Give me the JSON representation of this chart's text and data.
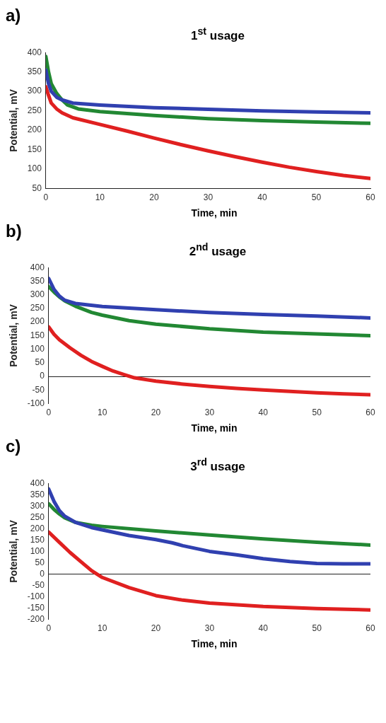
{
  "chart_data": [
    {
      "type": "line",
      "annotations": [
        "a)"
      ],
      "title": "1$^{st}$ usage",
      "xlabel": "Time, min",
      "ylabel": "Potential, mV",
      "xlim": [
        0,
        60
      ],
      "xticks": [
        0,
        10,
        20,
        30,
        40,
        50,
        60
      ],
      "ylim": [
        50,
        400
      ],
      "yticks": [
        50,
        100,
        150,
        200,
        250,
        300,
        350,
        400
      ],
      "marker": "none",
      "series": [
        {
          "color": "#3040b0",
          "x": [
            0,
            0.5,
            1,
            2,
            3,
            5,
            10,
            20,
            30,
            40,
            50,
            60
          ],
          "values": [
            355,
            320,
            300,
            285,
            278,
            270,
            265,
            258,
            254,
            250,
            247,
            245
          ]
        },
        {
          "color": "#228833",
          "x": [
            0,
            0.5,
            1,
            2,
            3,
            4,
            6,
            10,
            20,
            30,
            40,
            50,
            60
          ],
          "values": [
            390,
            350,
            320,
            295,
            278,
            265,
            255,
            248,
            238,
            230,
            225,
            221,
            218
          ]
        },
        {
          "color": "#e02020",
          "x": [
            0,
            0.5,
            1,
            2,
            3,
            5,
            10,
            15,
            20,
            25,
            30,
            35,
            40,
            45,
            50,
            55,
            60
          ],
          "values": [
            312,
            290,
            270,
            255,
            245,
            232,
            215,
            198,
            180,
            163,
            147,
            132,
            118,
            105,
            94,
            84,
            76
          ]
        }
      ]
    },
    {
      "type": "line",
      "annotations": [
        "b)"
      ],
      "title": "2$^{nd}$ usage",
      "xlabel": "Time, min",
      "ylabel": "Potential, mV",
      "xlim": [
        0,
        60
      ],
      "xticks": [
        0,
        10,
        20,
        30,
        40,
        50,
        60
      ],
      "ylim": [
        -100,
        400
      ],
      "yticks": [
        -100,
        -50,
        0,
        50,
        100,
        150,
        200,
        250,
        300,
        350,
        400
      ],
      "marker": "none",
      "series": [
        {
          "color": "#3040b0",
          "x": [
            0,
            1,
            2,
            3,
            5,
            10,
            20,
            30,
            40,
            50,
            60
          ],
          "values": [
            360,
            320,
            295,
            280,
            268,
            257,
            245,
            235,
            228,
            222,
            215
          ]
        },
        {
          "color": "#228833",
          "x": [
            0,
            1,
            2,
            3,
            5,
            8,
            10,
            15,
            20,
            30,
            40,
            50,
            60
          ],
          "values": [
            330,
            310,
            292,
            278,
            258,
            235,
            225,
            205,
            192,
            175,
            163,
            156,
            150
          ]
        },
        {
          "color": "#e02020",
          "x": [
            0,
            1,
            2,
            4,
            6,
            8,
            10,
            12,
            14,
            16,
            20,
            25,
            30,
            35,
            40,
            45,
            50,
            55,
            60
          ],
          "values": [
            182,
            155,
            135,
            105,
            78,
            55,
            37,
            20,
            7,
            -5,
            -17,
            -28,
            -37,
            -44,
            -50,
            -55,
            -60,
            -64,
            -67
          ]
        }
      ]
    },
    {
      "type": "line",
      "annotations": [
        "c)"
      ],
      "title": "3$^{rd}$ usage",
      "xlabel": "Time, min",
      "ylabel": "Potential, mV",
      "xlim": [
        0,
        60
      ],
      "xticks": [
        0,
        10,
        20,
        30,
        40,
        50,
        60
      ],
      "ylim": [
        -200,
        400
      ],
      "yticks": [
        -200,
        -150,
        -100,
        -50,
        0,
        50,
        100,
        150,
        200,
        250,
        300,
        350,
        400
      ],
      "marker": "none",
      "series": [
        {
          "color": "#3040b0",
          "x": [
            0,
            1,
            2,
            3,
            5,
            8,
            10,
            15,
            20,
            23,
            25,
            30,
            35,
            40,
            45,
            50,
            55,
            60
          ],
          "values": [
            375,
            320,
            280,
            255,
            228,
            205,
            195,
            170,
            152,
            138,
            125,
            100,
            85,
            68,
            55,
            47,
            45,
            45
          ]
        },
        {
          "color": "#228833",
          "x": [
            0,
            1,
            2,
            3,
            5,
            8,
            10,
            20,
            30,
            40,
            50,
            60
          ],
          "values": [
            310,
            285,
            265,
            248,
            228,
            215,
            210,
            190,
            172,
            155,
            140,
            128
          ]
        },
        {
          "color": "#e02020",
          "x": [
            0,
            2,
            4,
            6,
            8,
            10,
            15,
            20,
            25,
            30,
            40,
            50,
            60
          ],
          "values": [
            185,
            140,
            95,
            55,
            15,
            -15,
            -60,
            -95,
            -115,
            -128,
            -143,
            -152,
            -158
          ]
        }
      ]
    }
  ]
}
